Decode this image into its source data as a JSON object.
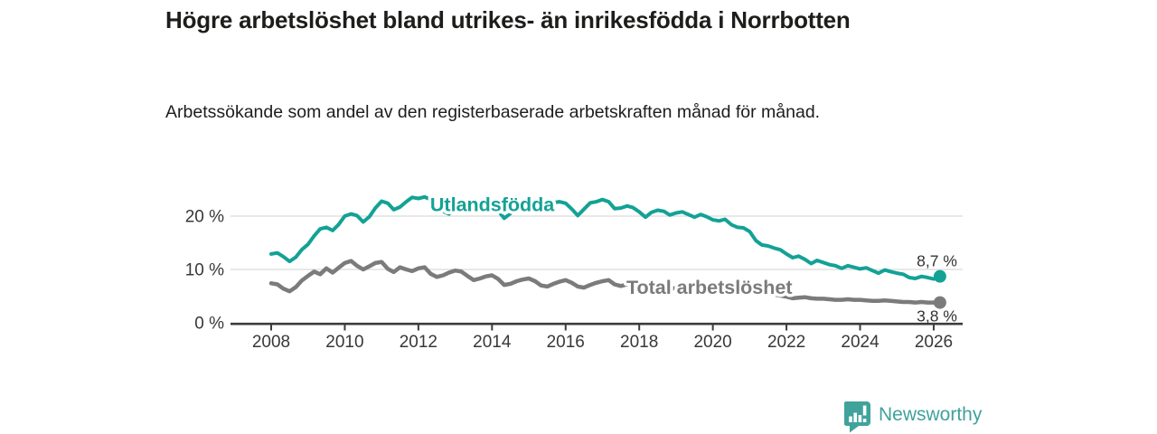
{
  "header": {
    "title": "Högre arbetslöshet bland utrikes- än inrikesfödda i Norrbotten",
    "subtitle": "Arbetssökande som andel av den registerbaserade arbetskraften månad för månad."
  },
  "footer": {
    "brand": "Newsworthy",
    "logo_icon": "bar-chart-speech-bubble-icon"
  },
  "colors": {
    "series_foreign": "#13a295",
    "series_total": "#7b7b7b",
    "grid": "#d9d9d9",
    "axis": "#3c3c3c",
    "tick_text": "#383838",
    "value_text": "#333333",
    "title_text": "#1d1d1b",
    "brand_teal": "#40a29b",
    "background": "#ffffff"
  },
  "chart_data": {
    "type": "line",
    "title": "Högre arbetslöshet bland utrikes- än inrikesfödda i Norrbotten",
    "xlabel": "",
    "ylabel": "",
    "grid": "horizontal-only",
    "x_axis": {
      "ticks": [
        2008,
        2010,
        2012,
        2014,
        2016,
        2018,
        2020,
        2022,
        2024,
        2026
      ],
      "range": [
        2006.9,
        2026.8
      ]
    },
    "y_axis": {
      "ticks": [
        0,
        10,
        20
      ],
      "tick_suffix": " %",
      "range": [
        0,
        25.5
      ]
    },
    "series": [
      {
        "name": "Utlandsfödda",
        "color": "#13a295",
        "line_width": 4,
        "end_label": "8,7 %",
        "end_value": 8.7,
        "end_label_position": "above",
        "label_anchor": {
          "x": 2012.32,
          "y": 20.9
        },
        "points": [
          [
            2008.0,
            12.9
          ],
          [
            2008.17,
            13.1
          ],
          [
            2008.33,
            12.4
          ],
          [
            2008.5,
            11.5
          ],
          [
            2008.67,
            12.3
          ],
          [
            2008.83,
            13.7
          ],
          [
            2009.0,
            14.7
          ],
          [
            2009.17,
            16.3
          ],
          [
            2009.33,
            17.6
          ],
          [
            2009.5,
            17.9
          ],
          [
            2009.67,
            17.3
          ],
          [
            2009.83,
            18.4
          ],
          [
            2010.0,
            20.0
          ],
          [
            2010.17,
            20.4
          ],
          [
            2010.33,
            20.1
          ],
          [
            2010.5,
            18.9
          ],
          [
            2010.67,
            19.9
          ],
          [
            2010.83,
            21.5
          ],
          [
            2011.0,
            22.8
          ],
          [
            2011.17,
            22.4
          ],
          [
            2011.33,
            21.2
          ],
          [
            2011.5,
            21.7
          ],
          [
            2011.67,
            22.7
          ],
          [
            2011.83,
            23.5
          ],
          [
            2012.0,
            23.3
          ],
          [
            2012.17,
            23.6
          ],
          [
            2012.33,
            23.1
          ],
          [
            2012.5,
            22.2
          ],
          [
            2012.67,
            20.9
          ],
          [
            2012.83,
            20.4
          ],
          [
            2013.0,
            21.9
          ],
          [
            2013.17,
            22.7
          ],
          [
            2013.33,
            22.4
          ],
          [
            2013.5,
            21.6
          ],
          [
            2013.67,
            21.9
          ],
          [
            2013.83,
            22.4
          ],
          [
            2014.0,
            22.1
          ],
          [
            2014.17,
            21.0
          ],
          [
            2014.33,
            19.6
          ],
          [
            2014.5,
            20.5
          ],
          [
            2014.67,
            21.4
          ],
          [
            2014.83,
            22.0
          ],
          [
            2015.0,
            22.3
          ],
          [
            2015.17,
            21.8
          ],
          [
            2015.33,
            21.2
          ],
          [
            2015.5,
            22.0
          ],
          [
            2015.67,
            22.5
          ],
          [
            2015.83,
            22.7
          ],
          [
            2016.0,
            22.4
          ],
          [
            2016.17,
            21.3
          ],
          [
            2016.33,
            20.1
          ],
          [
            2016.5,
            21.3
          ],
          [
            2016.67,
            22.5
          ],
          [
            2016.83,
            22.7
          ],
          [
            2017.0,
            23.1
          ],
          [
            2017.17,
            22.7
          ],
          [
            2017.33,
            21.4
          ],
          [
            2017.5,
            21.5
          ],
          [
            2017.67,
            21.9
          ],
          [
            2017.83,
            21.6
          ],
          [
            2018.0,
            20.8
          ],
          [
            2018.17,
            19.8
          ],
          [
            2018.33,
            20.7
          ],
          [
            2018.5,
            21.1
          ],
          [
            2018.67,
            20.9
          ],
          [
            2018.83,
            20.2
          ],
          [
            2019.0,
            20.6
          ],
          [
            2019.17,
            20.8
          ],
          [
            2019.33,
            20.3
          ],
          [
            2019.5,
            19.8
          ],
          [
            2019.67,
            20.3
          ],
          [
            2019.83,
            19.9
          ],
          [
            2020.0,
            19.3
          ],
          [
            2020.17,
            19.1
          ],
          [
            2020.33,
            19.4
          ],
          [
            2020.5,
            18.4
          ],
          [
            2020.67,
            17.9
          ],
          [
            2020.83,
            17.8
          ],
          [
            2021.0,
            17.1
          ],
          [
            2021.17,
            15.4
          ],
          [
            2021.33,
            14.6
          ],
          [
            2021.5,
            14.4
          ],
          [
            2021.67,
            14.0
          ],
          [
            2021.83,
            13.7
          ],
          [
            2022.0,
            12.9
          ],
          [
            2022.17,
            12.2
          ],
          [
            2022.33,
            12.5
          ],
          [
            2022.5,
            11.9
          ],
          [
            2022.67,
            11.1
          ],
          [
            2022.83,
            11.7
          ],
          [
            2023.0,
            11.3
          ],
          [
            2023.17,
            10.9
          ],
          [
            2023.33,
            10.7
          ],
          [
            2023.5,
            10.2
          ],
          [
            2023.67,
            10.7
          ],
          [
            2023.83,
            10.4
          ],
          [
            2024.0,
            10.1
          ],
          [
            2024.17,
            10.3
          ],
          [
            2024.33,
            9.8
          ],
          [
            2024.5,
            9.3
          ],
          [
            2024.67,
            9.9
          ],
          [
            2024.83,
            9.6
          ],
          [
            2025.0,
            9.3
          ],
          [
            2025.17,
            9.1
          ],
          [
            2025.33,
            8.5
          ],
          [
            2025.5,
            8.3
          ],
          [
            2025.67,
            8.7
          ],
          [
            2025.83,
            8.5
          ],
          [
            2026.0,
            8.2
          ],
          [
            2026.17,
            8.7
          ]
        ]
      },
      {
        "name": "Total arbetslöshet",
        "color": "#7b7b7b",
        "line_width": 4.5,
        "end_label": "3,8 %",
        "end_value": 3.8,
        "end_label_position": "below",
        "label_anchor": {
          "x": 2017.65,
          "y": 5.4
        },
        "points": [
          [
            2008.0,
            7.4
          ],
          [
            2008.17,
            7.2
          ],
          [
            2008.33,
            6.4
          ],
          [
            2008.5,
            5.9
          ],
          [
            2008.67,
            6.7
          ],
          [
            2008.83,
            7.9
          ],
          [
            2009.0,
            8.8
          ],
          [
            2009.17,
            9.6
          ],
          [
            2009.33,
            9.1
          ],
          [
            2009.5,
            10.2
          ],
          [
            2009.67,
            9.4
          ],
          [
            2009.83,
            10.3
          ],
          [
            2010.0,
            11.2
          ],
          [
            2010.17,
            11.6
          ],
          [
            2010.33,
            10.7
          ],
          [
            2010.5,
            10.0
          ],
          [
            2010.67,
            10.6
          ],
          [
            2010.83,
            11.2
          ],
          [
            2011.0,
            11.4
          ],
          [
            2011.17,
            10.1
          ],
          [
            2011.33,
            9.5
          ],
          [
            2011.5,
            10.4
          ],
          [
            2011.67,
            10.0
          ],
          [
            2011.83,
            9.7
          ],
          [
            2012.0,
            10.2
          ],
          [
            2012.17,
            10.4
          ],
          [
            2012.33,
            9.2
          ],
          [
            2012.5,
            8.6
          ],
          [
            2012.67,
            8.9
          ],
          [
            2012.83,
            9.4
          ],
          [
            2013.0,
            9.8
          ],
          [
            2013.17,
            9.6
          ],
          [
            2013.33,
            8.8
          ],
          [
            2013.5,
            8.0
          ],
          [
            2013.67,
            8.3
          ],
          [
            2013.83,
            8.7
          ],
          [
            2014.0,
            8.9
          ],
          [
            2014.17,
            8.2
          ],
          [
            2014.33,
            7.1
          ],
          [
            2014.5,
            7.3
          ],
          [
            2014.67,
            7.8
          ],
          [
            2014.83,
            8.1
          ],
          [
            2015.0,
            8.3
          ],
          [
            2015.17,
            7.8
          ],
          [
            2015.33,
            7.0
          ],
          [
            2015.5,
            6.8
          ],
          [
            2015.67,
            7.3
          ],
          [
            2015.83,
            7.7
          ],
          [
            2016.0,
            8.0
          ],
          [
            2016.17,
            7.5
          ],
          [
            2016.33,
            6.8
          ],
          [
            2016.5,
            6.6
          ],
          [
            2016.67,
            7.1
          ],
          [
            2016.83,
            7.5
          ],
          [
            2017.0,
            7.8
          ],
          [
            2017.17,
            8.0
          ],
          [
            2017.33,
            7.2
          ],
          [
            2017.5,
            6.9
          ],
          [
            2017.67,
            7.2
          ],
          [
            2017.83,
            7.0
          ],
          [
            2018.0,
            7.1
          ],
          [
            2018.17,
            6.6
          ],
          [
            2018.33,
            6.2
          ],
          [
            2018.5,
            6.4
          ],
          [
            2018.67,
            6.6
          ],
          [
            2018.83,
            6.4
          ],
          [
            2019.0,
            6.5
          ],
          [
            2019.17,
            6.2
          ],
          [
            2019.33,
            6.0
          ],
          [
            2019.5,
            6.1
          ],
          [
            2019.67,
            6.3
          ],
          [
            2019.83,
            6.4
          ],
          [
            2020.0,
            6.6
          ],
          [
            2020.17,
            7.0
          ],
          [
            2020.33,
            7.2
          ],
          [
            2020.5,
            7.0
          ],
          [
            2020.67,
            6.8
          ],
          [
            2020.83,
            6.6
          ],
          [
            2021.0,
            6.4
          ],
          [
            2021.17,
            6.0
          ],
          [
            2021.33,
            5.7
          ],
          [
            2021.5,
            5.5
          ],
          [
            2021.67,
            5.3
          ],
          [
            2021.83,
            5.1
          ],
          [
            2022.0,
            4.9
          ],
          [
            2022.17,
            4.6
          ],
          [
            2022.33,
            4.7
          ],
          [
            2022.5,
            4.8
          ],
          [
            2022.67,
            4.6
          ],
          [
            2022.83,
            4.5
          ],
          [
            2023.0,
            4.5
          ],
          [
            2023.17,
            4.4
          ],
          [
            2023.33,
            4.3
          ],
          [
            2023.5,
            4.3
          ],
          [
            2023.67,
            4.4
          ],
          [
            2023.83,
            4.3
          ],
          [
            2024.0,
            4.3
          ],
          [
            2024.17,
            4.2
          ],
          [
            2024.33,
            4.1
          ],
          [
            2024.5,
            4.1
          ],
          [
            2024.67,
            4.2
          ],
          [
            2024.83,
            4.1
          ],
          [
            2025.0,
            4.0
          ],
          [
            2025.17,
            3.9
          ],
          [
            2025.33,
            3.9
          ],
          [
            2025.5,
            3.8
          ],
          [
            2025.67,
            3.9
          ],
          [
            2025.83,
            3.8
          ],
          [
            2026.0,
            3.8
          ],
          [
            2026.17,
            3.8
          ]
        ]
      }
    ],
    "legend_position": "inline-labels-on-lines"
  }
}
